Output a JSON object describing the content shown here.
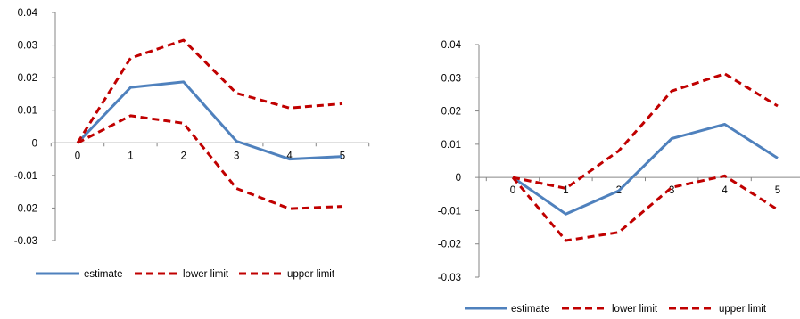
{
  "colors": {
    "estimate": "#4F81BD",
    "limits": "#C00000",
    "axis": "#868686"
  },
  "chart_data": [
    {
      "type": "line",
      "x": [
        0,
        1,
        2,
        3,
        4,
        5
      ],
      "ylim": [
        -0.03,
        0.04
      ],
      "y_ticks": [
        "0.04",
        "0.03",
        "0.02",
        "0.01",
        "0",
        "-0.01",
        "-0.02",
        "-0.03"
      ],
      "x_ticks": [
        "0",
        "1",
        "2",
        "3",
        "4",
        "5"
      ],
      "grid": false,
      "legend_position": "bottom",
      "series": [
        {
          "name": "estimate",
          "values": [
            0,
            0.017,
            0.0187,
            0.0005,
            -0.005,
            -0.0042
          ]
        },
        {
          "name": "lower limit",
          "values": [
            0,
            0.0083,
            0.006,
            -0.014,
            -0.0202,
            -0.0195
          ]
        },
        {
          "name": "upper limit",
          "values": [
            0,
            0.026,
            0.0315,
            0.0152,
            0.0107,
            0.012
          ]
        }
      ]
    },
    {
      "type": "line",
      "x": [
        0,
        1,
        2,
        3,
        4,
        5
      ],
      "ylim": [
        -0.03,
        0.04
      ],
      "y_ticks": [
        "0.04",
        "0.03",
        "0.02",
        "0.01",
        "0",
        "-0.01",
        "-0.02",
        "-0.03"
      ],
      "x_ticks": [
        "0",
        "1",
        "2",
        "3",
        "4",
        "5"
      ],
      "grid": false,
      "legend_position": "bottom",
      "series": [
        {
          "name": "estimate",
          "values": [
            0,
            -0.011,
            -0.004,
            0.0117,
            0.016,
            0.0058
          ]
        },
        {
          "name": "lower limit",
          "values": [
            0,
            -0.019,
            -0.0165,
            -0.003,
            0.0005,
            -0.0097
          ]
        },
        {
          "name": "upper limit",
          "values": [
            0,
            -0.0033,
            0.008,
            0.026,
            0.0312,
            0.0215
          ]
        }
      ]
    }
  ]
}
